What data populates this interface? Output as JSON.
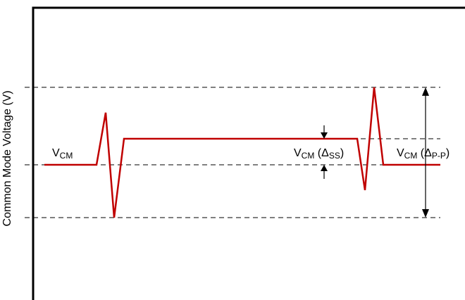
{
  "axis": {
    "ylabel": "Common Mode Voltage (V)"
  },
  "labels": {
    "vcm": {
      "main": "V",
      "sub": "CM"
    },
    "vcm_dss": {
      "main": "V",
      "sub": "CM",
      "paren_open": " (",
      "delta": "Δ",
      "delta_sub": "SS",
      "paren_close": ")"
    },
    "vcm_dpp": {
      "main": "V",
      "sub": "CM",
      "paren_open": " (",
      "delta": "Δ",
      "delta_sub": "P-P",
      "paren_close": ")"
    }
  },
  "colors": {
    "signal": "#c00000",
    "axis": "#000000",
    "reference_lines": "#000000"
  }
}
